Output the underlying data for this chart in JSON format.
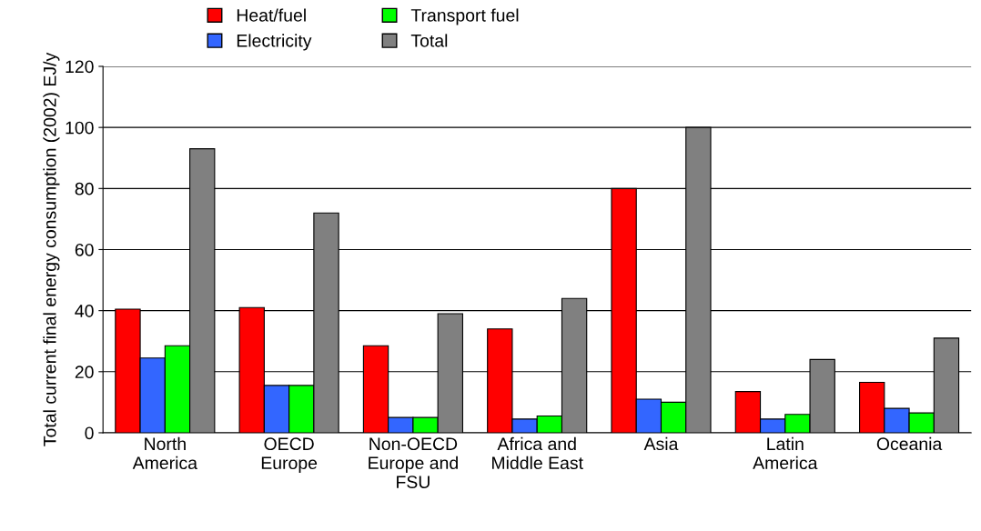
{
  "chart_data": {
    "type": "bar",
    "ylabel": "Total current final energy consumption (2002) EJ/y",
    "categories": [
      "North\nAmerica",
      "OECD\nEurope",
      "Non-OECD\nEurope and\nFSU",
      "Africa and\nMiddle East",
      "Asia",
      "Latin\nAmerica",
      "Oceania"
    ],
    "series": [
      {
        "name": "Heat/fuel",
        "color": "#ff0000",
        "values": [
          40.5,
          41,
          28.5,
          34,
          80,
          13.5,
          16.5
        ]
      },
      {
        "name": "Electricity",
        "color": "#3366ff",
        "values": [
          24.5,
          15.5,
          5,
          4.5,
          11,
          4.5,
          8
        ]
      },
      {
        "name": "Transport fuel",
        "color": "#00ff00",
        "values": [
          28.5,
          15.5,
          5,
          5.5,
          10,
          6,
          6.5
        ]
      },
      {
        "name": "Total",
        "color": "#808080",
        "values": [
          93,
          72,
          39,
          44,
          100,
          24,
          31
        ]
      }
    ],
    "ylim": [
      0,
      120
    ],
    "yticks": [
      0,
      20,
      40,
      60,
      80,
      100,
      120
    ],
    "grid": "y",
    "legend": "top"
  }
}
